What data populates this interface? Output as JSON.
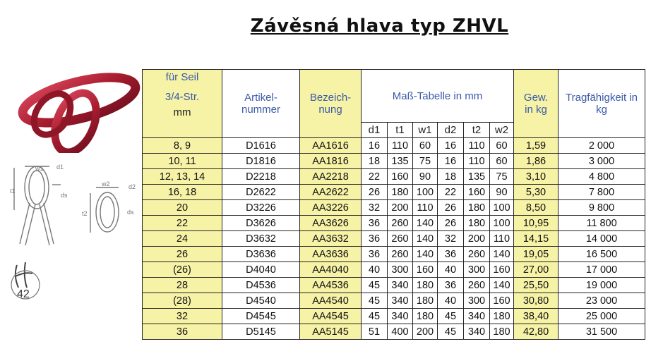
{
  "title": "Závěsná hlava typ ZHVL",
  "table": {
    "headers": {
      "seil_line1": "für Seil",
      "seil_line2": "3/4-Str.",
      "seil_line3": "mm",
      "artikel": "Artikel-nummer",
      "bezeichnung": "Bezeich-nung",
      "mass": "Maß-Tabelle in mm",
      "gew": "Gew. in kg",
      "trag": "Tragfähigkeit in kg",
      "dims": [
        "d1",
        "t1",
        "w1",
        "d2",
        "t2",
        "w2"
      ]
    },
    "rows": [
      {
        "seil": "8, 9",
        "artikel": "D1616",
        "bez": "AA1616",
        "d1": "16",
        "t1": "110",
        "w1": "60",
        "d2": "16",
        "t2": "110",
        "w2": "60",
        "gew": "1,59",
        "trag": "2 000"
      },
      {
        "seil": "10, 11",
        "artikel": "D1816",
        "bez": "AA1816",
        "d1": "18",
        "t1": "135",
        "w1": "75",
        "d2": "16",
        "t2": "110",
        "w2": "60",
        "gew": "1,86",
        "trag": "3 000"
      },
      {
        "seil": "12, 13, 14",
        "artikel": "D2218",
        "bez": "AA2218",
        "d1": "22",
        "t1": "160",
        "w1": "90",
        "d2": "18",
        "t2": "135",
        "w2": "75",
        "gew": "3,10",
        "trag": "4 800"
      },
      {
        "seil": "16, 18",
        "artikel": "D2622",
        "bez": "AA2622",
        "d1": "26",
        "t1": "180",
        "w1": "100",
        "d2": "22",
        "t2": "160",
        "w2": "90",
        "gew": "5,30",
        "trag": "7 800"
      },
      {
        "seil": "20",
        "artikel": "D3226",
        "bez": "AA3226",
        "d1": "32",
        "t1": "200",
        "w1": "110",
        "d2": "26",
        "t2": "180",
        "w2": "100",
        "gew": "8,50",
        "trag": "9 800"
      },
      {
        "seil": "22",
        "artikel": "D3626",
        "bez": "AA3626",
        "d1": "36",
        "t1": "260",
        "w1": "140",
        "d2": "26",
        "t2": "180",
        "w2": "100",
        "gew": "10,95",
        "trag": "11 800"
      },
      {
        "seil": "24",
        "artikel": "D3632",
        "bez": "AA3632",
        "d1": "36",
        "t1": "260",
        "w1": "140",
        "d2": "32",
        "t2": "200",
        "w2": "110",
        "gew": "14,15",
        "trag": "14 000"
      },
      {
        "seil": "26",
        "artikel": "D3636",
        "bez": "AA3636",
        "d1": "36",
        "t1": "260",
        "w1": "140",
        "d2": "36",
        "t2": "260",
        "w2": "140",
        "gew": "19,05",
        "trag": "16 500"
      },
      {
        "seil": "(26)",
        "artikel": "D4040",
        "bez": "AA4040",
        "d1": "40",
        "t1": "300",
        "w1": "160",
        "d2": "40",
        "t2": "300",
        "w2": "160",
        "gew": "27,00",
        "trag": "17 000"
      },
      {
        "seil": "28",
        "artikel": "D4536",
        "bez": "AA4536",
        "d1": "45",
        "t1": "340",
        "w1": "180",
        "d2": "36",
        "t2": "260",
        "w2": "140",
        "gew": "25,50",
        "trag": "19 000"
      },
      {
        "seil": "(28)",
        "artikel": "D4540",
        "bez": "AA4540",
        "d1": "45",
        "t1": "340",
        "w1": "180",
        "d2": "40",
        "t2": "300",
        "w2": "160",
        "gew": "30,80",
        "trag": "23 000"
      },
      {
        "seil": "32",
        "artikel": "D4545",
        "bez": "AA4545",
        "d1": "45",
        "t1": "340",
        "w1": "180",
        "d2": "45",
        "t2": "340",
        "w2": "180",
        "gew": "38,40",
        "trag": "25 000"
      },
      {
        "seil": "36",
        "artikel": "D5145",
        "bez": "AA5145",
        "d1": "51",
        "t1": "400",
        "w1": "200",
        "d2": "45",
        "t2": "340",
        "w2": "180",
        "gew": "42,80",
        "trag": "31 500"
      }
    ]
  },
  "diagram_labels": {
    "w1": "w1",
    "d1": "d1",
    "t1": "t1",
    "ds1": "ds",
    "w2": "w2",
    "d2": "d2",
    "t2": "t2",
    "ds2": "ds"
  },
  "logo_text": "42",
  "colors": {
    "highlight": "#f6f2a6",
    "header_text": "#3a5aa8",
    "ring": "#b5253a"
  }
}
